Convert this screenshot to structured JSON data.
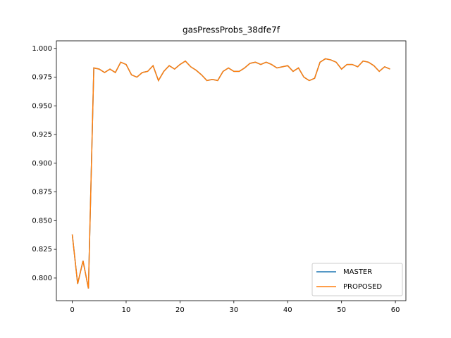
{
  "chart_data": {
    "type": "line",
    "title": "gasPressProbs_38dfe7f",
    "x": [
      0,
      1,
      2,
      3,
      4,
      5,
      6,
      7,
      8,
      9,
      10,
      11,
      12,
      13,
      14,
      15,
      16,
      17,
      18,
      19,
      20,
      21,
      22,
      23,
      24,
      25,
      26,
      27,
      28,
      29,
      30,
      31,
      32,
      33,
      34,
      35,
      36,
      37,
      38,
      39,
      40,
      41,
      42,
      43,
      44,
      45,
      46,
      47,
      48,
      49,
      50,
      51,
      52,
      53,
      54,
      55,
      56,
      57,
      58,
      59
    ],
    "series": [
      {
        "name": "MASTER",
        "color": "#1f77b4",
        "values": [
          0.838,
          0.795,
          0.815,
          0.791,
          0.983,
          0.982,
          0.979,
          0.982,
          0.979,
          0.988,
          0.986,
          0.977,
          0.975,
          0.979,
          0.98,
          0.985,
          0.972,
          0.98,
          0.985,
          0.982,
          0.986,
          0.989,
          0.984,
          0.981,
          0.977,
          0.972,
          0.973,
          0.972,
          0.98,
          0.983,
          0.98,
          0.98,
          0.983,
          0.987,
          0.988,
          0.986,
          0.988,
          0.986,
          0.983,
          0.984,
          0.985,
          0.98,
          0.983,
          0.975,
          0.972,
          0.974,
          0.988,
          0.991,
          0.99,
          0.988,
          0.982,
          0.986,
          0.986,
          0.984,
          0.989,
          0.988,
          0.985,
          0.98,
          0.984,
          0.982
        ]
      },
      {
        "name": "PROPOSED",
        "color": "#ff7f0e",
        "values": [
          0.838,
          0.795,
          0.815,
          0.791,
          0.983,
          0.982,
          0.979,
          0.982,
          0.979,
          0.988,
          0.986,
          0.977,
          0.975,
          0.979,
          0.98,
          0.985,
          0.972,
          0.98,
          0.985,
          0.982,
          0.986,
          0.989,
          0.984,
          0.981,
          0.977,
          0.972,
          0.973,
          0.972,
          0.98,
          0.983,
          0.98,
          0.98,
          0.983,
          0.987,
          0.988,
          0.986,
          0.988,
          0.986,
          0.983,
          0.984,
          0.985,
          0.98,
          0.983,
          0.975,
          0.972,
          0.974,
          0.988,
          0.991,
          0.99,
          0.988,
          0.982,
          0.986,
          0.986,
          0.984,
          0.989,
          0.988,
          0.985,
          0.98,
          0.984,
          0.982
        ]
      }
    ],
    "xlim": [
      -2.95,
      61.95
    ],
    "xticks": [
      0,
      10,
      20,
      30,
      40,
      50,
      60
    ],
    "ylim": [
      0.7803,
      1.0066
    ],
    "yticks": [
      {
        "value": 0.8,
        "label": "0.800"
      },
      {
        "value": 0.825,
        "label": "0.825"
      },
      {
        "value": 0.85,
        "label": "0.850"
      },
      {
        "value": 0.875,
        "label": "0.875"
      },
      {
        "value": 0.9,
        "label": "0.900"
      },
      {
        "value": 0.925,
        "label": "0.925"
      },
      {
        "value": 0.95,
        "label": "0.950"
      },
      {
        "value": 0.975,
        "label": "0.975"
      },
      {
        "value": 1.0,
        "label": "1.000"
      }
    ],
    "legend": "lower right"
  }
}
